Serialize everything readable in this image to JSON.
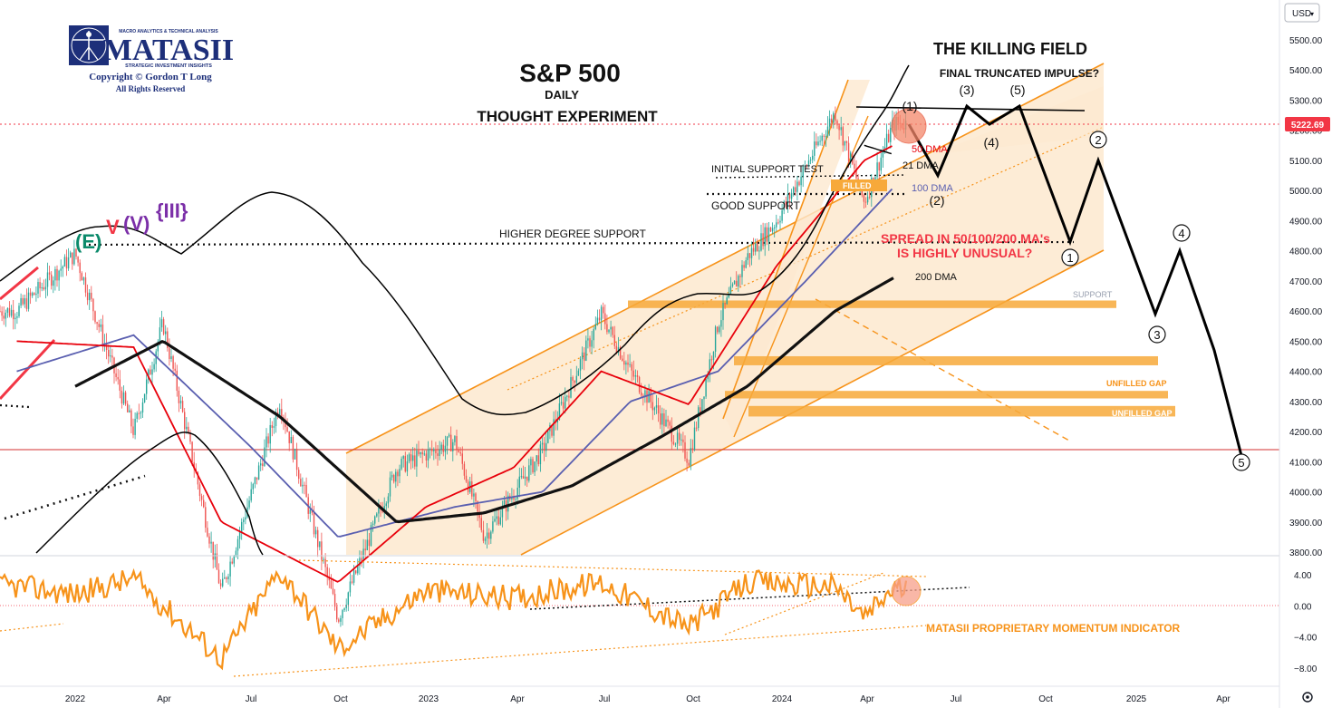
{
  "logo": {
    "tagline": "MACRO ANALYTICS & TECHNICAL ANALYSIS",
    "name": "MATASII",
    "subtitle": "STRATEGIC INVESTMENT INSIGHTS",
    "copyright": "Copyright © Gordon T Long",
    "rights": "All Rights Reserved"
  },
  "header": {
    "title": "S&P 500",
    "period": "DAILY",
    "subtitle": "THOUGHT EXPERIMENT",
    "killing_field": "THE KILLING FIELD",
    "final_impulse": "FINAL TRUNCATED IMPULSE?"
  },
  "currency_button": "USD",
  "settings_icon": "gear-icon",
  "annotations": {
    "initial_support": "INITIAL SUPPORT TEST",
    "good_support": "GOOD SUPPORT",
    "higher_degree_support": "HIGHER DEGREE SUPPORT",
    "filled": "FILLED",
    "spread_line1": "SPREAD IN 50/100/200 MA's",
    "spread_line2": "IS HIGHLY UNUSUAL?",
    "dma50": "50 DMA",
    "dma21": "21 DMA",
    "dma100": "100 DMA",
    "dma200": "200 DMA",
    "support": "SUPPORT",
    "unfilled_gap_1": "UNFILLED GAP",
    "unfilled_gap_2": "UNFILLED GAP",
    "momentum_label": "MATASII PROPRIETARY MOMENTUM INDICATOR"
  },
  "wave_labels": {
    "E": "(E)",
    "V_small": "V",
    "V_paren": "(V)",
    "III": "{III}",
    "w1_paren": "(1)",
    "w2_paren": "(2)",
    "w3_paren": "(3)",
    "w4_paren": "(4)",
    "w5_paren": "(5)",
    "c1": "1",
    "c2": "2",
    "c3": "3",
    "c4": "4",
    "c5": "5"
  },
  "colors": {
    "price_up": "#26a69a",
    "price_down": "#ef5350",
    "ma21": "#000000",
    "ma50": "#e8000b",
    "ma100": "#5a5fb0",
    "ma200": "#111111",
    "channel": "#f7931a",
    "channel_fill": "#fde9cf",
    "momentum": "#f7931a",
    "wave_purple": "#7b2fa8",
    "wave_green": "#0b8a6b",
    "last_price_bg": "#f23645",
    "support_band": "#f7a93a"
  },
  "chart_data": {
    "type": "line",
    "title": "S&P 500",
    "ylim": [
      3800,
      5560
    ],
    "y_ticks": [
      5500,
      5400,
      5300,
      5200,
      5100,
      5000,
      4900,
      4800,
      4700,
      4600,
      4500,
      4400,
      4300,
      4200,
      4100,
      4000,
      3900,
      3800
    ],
    "y_tick_labels": [
      "5500.00",
      "5400.00",
      "5300.00",
      "5200.00",
      "5100.00",
      "5000.00",
      "4900.00",
      "4800.00",
      "4700.00",
      "4600.00",
      "4500.00",
      "4400.00",
      "4300.00",
      "4200.00",
      "4100.00",
      "4000.00",
      "3900.00",
      "3800.00"
    ],
    "x_tick_labels": [
      "2022",
      "Apr",
      "Jul",
      "Oct",
      "2023",
      "Apr",
      "Jul",
      "Oct",
      "2024",
      "Apr",
      "Jul",
      "Oct",
      "2025",
      "Apr"
    ],
    "last_price": 5222.69,
    "last_price_label": "5222.69",
    "horizontal_line": 4140,
    "support_levels": {
      "good_support": 4990,
      "initial_support_test": 5045,
      "higher_degree_support": 4820
    },
    "zones": [
      {
        "name": "SUPPORT",
        "low": 4610,
        "high": 4635
      },
      {
        "name": "band-4440",
        "low": 4420,
        "high": 4450
      },
      {
        "name": "UNFILLED GAP",
        "low": 4310,
        "high": 4335
      },
      {
        "name": "UNFILLED GAP",
        "low": 4250,
        "high": 4285
      }
    ],
    "series": [
      {
        "name": "S&P 500",
        "x": [
          "2021-11",
          "2022-01",
          "2022-03",
          "2022-04",
          "2022-06",
          "2022-08",
          "2022-10",
          "2022-12",
          "2023-02",
          "2023-03",
          "2023-05",
          "2023-07",
          "2023-08",
          "2023-10",
          "2023-11",
          "2023-12",
          "2024-01",
          "2024-02",
          "2024-03",
          "2024-04",
          "2024-05"
        ],
        "values": [
          4600,
          4790,
          4200,
          4560,
          3670,
          4300,
          3580,
          4080,
          4170,
          3850,
          4140,
          4590,
          4400,
          4110,
          4560,
          4780,
          4900,
          5080,
          5260,
          4960,
          5222
        ]
      },
      {
        "name": "21 DMA",
        "x": [
          "2024-04-01",
          "2024-05-01"
        ],
        "values": [
          5150,
          5120
        ]
      },
      {
        "name": "50 DMA",
        "x": [
          "2021-11",
          "2022-03",
          "2022-06",
          "2022-10",
          "2023-01",
          "2023-04",
          "2023-07",
          "2023-10",
          "2024-01",
          "2024-04",
          "2024-05"
        ],
        "values": [
          4500,
          4480,
          3900,
          3700,
          3950,
          4080,
          4400,
          4290,
          4750,
          5100,
          5150
        ]
      },
      {
        "name": "100 DMA",
        "x": [
          "2021-11",
          "2022-03",
          "2022-07",
          "2022-10",
          "2023-02",
          "2023-05",
          "2023-08",
          "2023-11",
          "2024-02",
          "2024-05"
        ],
        "values": [
          4400,
          4520,
          4150,
          3850,
          3950,
          4000,
          4300,
          4400,
          4700,
          5010
        ]
      },
      {
        "name": "200 DMA",
        "x": [
          "2022-01",
          "2022-04",
          "2022-08",
          "2022-12",
          "2023-03",
          "2023-06",
          "2023-09",
          "2023-12",
          "2024-03",
          "2024-05"
        ],
        "values": [
          4350,
          4500,
          4250,
          3900,
          3930,
          4020,
          4180,
          4350,
          4600,
          4710
        ]
      },
      {
        "name": "Momentum",
        "x": [
          "2021-11",
          "2022-01",
          "2022-03",
          "2022-06",
          "2022-08",
          "2022-10",
          "2023-01",
          "2023-04",
          "2023-07",
          "2023-10",
          "2023-12",
          "2024-03",
          "2024-04",
          "2024-05"
        ],
        "values": [
          2.5,
          1.5,
          3.5,
          -6.8,
          4.5,
          -5.5,
          2,
          1,
          3,
          -2.8,
          3,
          2.5,
          -1.5,
          2.2
        ]
      }
    ],
    "projection": {
      "name": "Wave projection",
      "x": [
        "2024-05",
        "2024-06",
        "2024-07",
        "2024-08",
        "2024-09",
        "2024-10",
        "2024-11",
        "2025-01",
        "2025-02",
        "2025-03",
        "2025-04"
      ],
      "values": [
        5220,
        5050,
        5280,
        5220,
        5280,
        4830,
        5100,
        4590,
        4800,
        4470,
        4120
      ]
    },
    "momentum_axis": {
      "ylim": [
        -9,
        5.5
      ],
      "ticks": [
        4,
        0,
        -4,
        -8
      ],
      "tick_labels": [
        "4.00",
        "0.00",
        "−4.00",
        "−8.00"
      ]
    }
  }
}
